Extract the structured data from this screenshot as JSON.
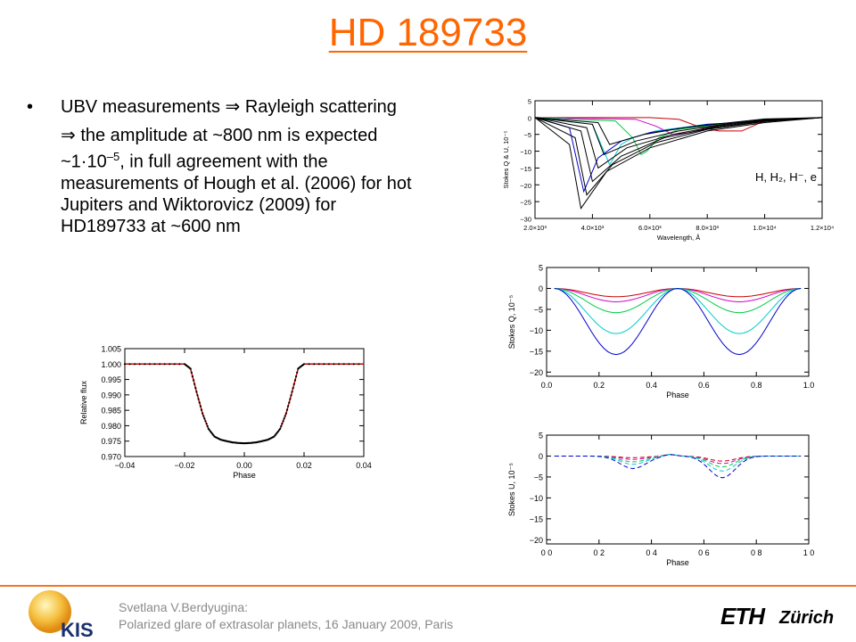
{
  "slide": {
    "title": "HD 189733",
    "bullet": {
      "symbol": "•",
      "main_prefix": "UBV measurements ",
      "arrow": "⇒",
      "main_suffix": " Rayleigh scattering",
      "sub_arrow": "⇒",
      "sub_line1": " the amplitude at ~800 nm is expected",
      "sub_line2_a": "~1·10",
      "sub_line2_exp": "–5",
      "sub_line2_b": ", in full agreement with the",
      "sub_line3": "measurements of Hough et al. (2006) for hot",
      "sub_line4": "Jupiters and Wiktorovicz (2009) for",
      "sub_line5": "HD189733 at ~600 nm"
    }
  },
  "footer": {
    "author": "Svetlana V.Berdyugina:",
    "talk": "Polarized glare of extrasolar planets, 16 January 2009, Paris",
    "logo_left_text": "KIS",
    "logo_right_text": "Zürich",
    "logo_right_mark": "ETH"
  },
  "colors": {
    "title": "#ff6600",
    "footer_line": "#f07820",
    "footer_text": "#8a8a8a"
  },
  "chart_data": [
    {
      "id": "lightcurve",
      "type": "scatter",
      "title": "",
      "xlabel": "Phase",
      "ylabel": "Relative flux",
      "xlim": [
        -0.04,
        0.04
      ],
      "ylim": [
        0.97,
        1.005
      ],
      "xticks": [
        -0.04,
        -0.02,
        0.0,
        0.02,
        0.04
      ],
      "xtick_labels": [
        "−0.04",
        "−0.02",
        "0.00",
        "0.02",
        "0.04"
      ],
      "yticks": [
        0.97,
        0.975,
        0.98,
        0.985,
        0.99,
        0.995,
        1.0,
        1.005
      ],
      "ytick_labels": [
        "0.970",
        "0.975",
        "0.980",
        "0.985",
        "0.990",
        "0.995",
        "1.000",
        "1.005"
      ],
      "series": [
        {
          "name": "",
          "x": [
            -0.04,
            -0.03,
            -0.02,
            -0.018,
            -0.016,
            -0.014,
            -0.012,
            -0.01,
            -0.008,
            -0.006,
            -0.004,
            -0.002,
            0.0,
            0.002,
            0.004,
            0.006,
            0.008,
            0.01,
            0.012,
            0.014,
            0.016,
            0.018,
            0.02,
            0.03,
            0.04
          ],
          "y": [
            1.0,
            1.0,
            1.0,
            0.9985,
            0.991,
            0.984,
            0.979,
            0.9765,
            0.9755,
            0.975,
            0.9746,
            0.9744,
            0.9743,
            0.9744,
            0.9746,
            0.975,
            0.9755,
            0.9765,
            0.979,
            0.984,
            0.991,
            0.9985,
            1.0,
            1.0,
            1.0
          ]
        }
      ]
    },
    {
      "id": "stokes_wavelength",
      "type": "line",
      "title": "",
      "xlabel": "Wavelength, Å",
      "ylabel": "Stokes Q & U, 10⁻⁵",
      "annotation": "H, H₂, H⁻, e",
      "xlim": [
        2000,
        12000
      ],
      "ylim": [
        -30,
        5
      ],
      "xticks": [
        2000,
        4000,
        6000,
        8000,
        10000,
        12000
      ],
      "xtick_labels": [
        "2.0×10³",
        "4.0×10³",
        "6.0×10³",
        "8.0×10³",
        "1.0×10⁴",
        "1.2×10⁴"
      ],
      "yticks": [
        -30,
        -25,
        -20,
        -15,
        -10,
        -5,
        0,
        5
      ],
      "ytick_labels": [
        "−30",
        "−25",
        "−20",
        "−15",
        "−10",
        "−5",
        "0",
        "5"
      ],
      "series": [
        {
          "name": "",
          "color": "#cc0000",
          "x": [
            2000,
            6000,
            7000,
            7800,
            8400,
            9200,
            10000,
            12000
          ],
          "y": [
            0,
            0,
            -0.5,
            -3.0,
            -4.0,
            -4.0,
            -1.0,
            0
          ]
        },
        {
          "name": "",
          "color": "#cc00cc",
          "x": [
            2000,
            5500,
            6200,
            6800,
            7400,
            8000,
            9000,
            12000
          ],
          "y": [
            0,
            -0.5,
            -2.5,
            -5.0,
            -4.5,
            -3.0,
            -1.5,
            0
          ]
        },
        {
          "name": "",
          "color": "#00cc44",
          "x": [
            2000,
            4800,
            5400,
            5700,
            5900,
            6300,
            7000,
            9000,
            12000
          ],
          "y": [
            0,
            -1,
            -6,
            -11,
            -10,
            -6,
            -3.5,
            -1.5,
            0
          ]
        },
        {
          "name": "",
          "color": "#00cccc",
          "x": [
            2000,
            4000,
            4600,
            5000,
            5400,
            6200,
            8000,
            12000
          ],
          "y": [
            0,
            -2,
            -14,
            -8,
            -6,
            -4,
            -2,
            0
          ]
        },
        {
          "name": "",
          "color": "#0000cc",
          "x": [
            2000,
            3200,
            3700,
            4200,
            5000,
            6000,
            8000,
            12000
          ],
          "y": [
            0,
            -3,
            -22,
            -12,
            -7,
            -4.5,
            -2,
            0
          ]
        },
        {
          "name": "",
          "color": "#000000",
          "x": [
            2000,
            3200,
            3600,
            4500,
            6000,
            8000,
            10000,
            12000
          ],
          "y": [
            0,
            -8,
            -27,
            -16,
            -9,
            -4,
            -1.5,
            0
          ]
        },
        {
          "name": "",
          "color": "#000000",
          "x": [
            2000,
            3400,
            3800,
            4700,
            6200,
            8000,
            10000,
            12000
          ],
          "y": [
            0,
            -6,
            -23,
            -14,
            -7.5,
            -3.5,
            -1.2,
            0
          ]
        },
        {
          "name": "",
          "color": "#000000",
          "x": [
            2000,
            3600,
            4000,
            5000,
            6500,
            8200,
            10000,
            12000
          ],
          "y": [
            0,
            -4,
            -19,
            -11.5,
            -6,
            -3,
            -1,
            0
          ]
        },
        {
          "name": "",
          "color": "#000000",
          "x": [
            2000,
            3800,
            4200,
            5200,
            6800,
            8400,
            10000,
            12000
          ],
          "y": [
            0,
            -3,
            -15,
            -9,
            -5,
            -2.5,
            -0.8,
            0
          ]
        },
        {
          "name": "",
          "color": "#000000",
          "x": [
            2000,
            4000,
            4400,
            5500,
            7000,
            8600,
            10000,
            12000
          ],
          "y": [
            0,
            -2,
            -11,
            -7,
            -4,
            -2,
            -0.6,
            0
          ]
        },
        {
          "name": "",
          "color": "#000000",
          "x": [
            2000,
            4200,
            4600,
            5800,
            7200,
            8800,
            10000,
            12000
          ],
          "y": [
            0,
            -1.5,
            -8,
            -5,
            -3,
            -1.5,
            -0.4,
            0
          ]
        }
      ]
    },
    {
      "id": "stokes_q_phase",
      "type": "line",
      "title": "",
      "xlabel": "Phase",
      "ylabel": "Stokes Q, 10⁻⁵",
      "xlim": [
        0.0,
        1.0
      ],
      "ylim": [
        -21,
        5
      ],
      "xticks": [
        0.0,
        0.2,
        0.4,
        0.6,
        0.8,
        1.0
      ],
      "xtick_labels": [
        "0.0",
        "0.2",
        "0.4",
        "0.6",
        "0.8",
        "1.0"
      ],
      "yticks": [
        -20,
        -15,
        -10,
        -5,
        0,
        5
      ],
      "ytick_labels": [
        "−20",
        "−15",
        "−10",
        "−5",
        "0",
        "5"
      ],
      "series": [
        {
          "name": "",
          "color": "#cc0000",
          "amp": 2.0
        },
        {
          "name": "",
          "color": "#cc00cc",
          "amp": 3.2
        },
        {
          "name": "",
          "color": "#00cc44",
          "amp": 5.8
        },
        {
          "name": "",
          "color": "#00cccc",
          "amp": 10.8
        },
        {
          "name": "",
          "color": "#0000cc",
          "amp": 15.8
        }
      ]
    },
    {
      "id": "stokes_u_phase",
      "type": "line",
      "title": "",
      "xlabel": "Phase",
      "ylabel": "Stokes U, 10⁻⁵",
      "xlim": [
        0.0,
        1.0
      ],
      "ylim": [
        -21,
        5
      ],
      "xticks": [
        0.0,
        0.2,
        0.4,
        0.6,
        0.8,
        1.0
      ],
      "xtick_labels": [
        "0 0",
        "0 2",
        "0 4",
        "0 6",
        "0 8",
        "1 0"
      ],
      "yticks": [
        -20,
        -15,
        -10,
        -5,
        0,
        5
      ],
      "ytick_labels": [
        "−20",
        "−15",
        "−10",
        "−5",
        "0",
        "5"
      ],
      "series": [
        {
          "name": "",
          "color": "#cc0000",
          "amp1": 0.4,
          "amp2": 1.2
        },
        {
          "name": "",
          "color": "#cc00cc",
          "amp1": 0.8,
          "amp2": 1.8
        },
        {
          "name": "",
          "color": "#00cc44",
          "amp1": 1.4,
          "amp2": 2.6
        },
        {
          "name": "",
          "color": "#00cccc",
          "amp1": 2.0,
          "amp2": 3.6
        },
        {
          "name": "",
          "color": "#0000cc",
          "amp1": 3.0,
          "amp2": 5.2
        }
      ]
    }
  ]
}
